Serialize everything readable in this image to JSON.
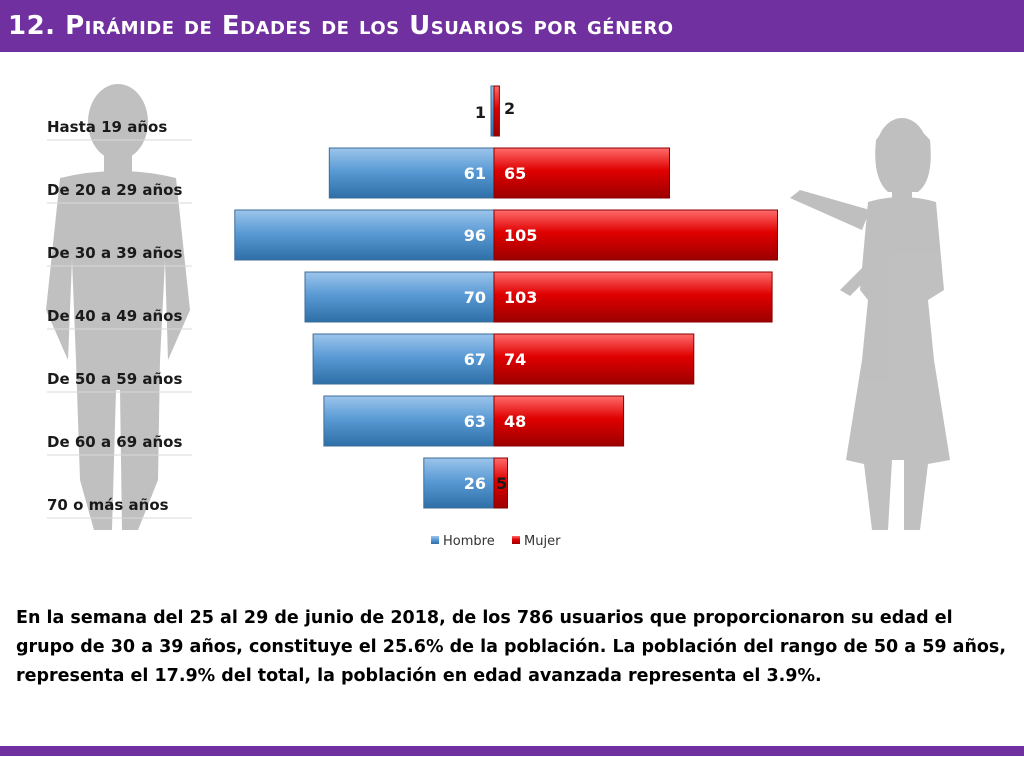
{
  "title": "12. Pirámide de Edades de los Usuarios por género",
  "summary": "En la semana del 25 al 29 de junio de 2018, de los 786 usuarios  que proporcionaron su edad el grupo de 30 a 39 años, constituye el 25.6% de la población. La población del rango de 50 a 59 años, representa el 17.9% del total, la población en edad avanzada representa el 3.9%.",
  "colors": {
    "accent": "#7030a0",
    "hombre": "#5b9bd5",
    "mujer": "#e00000",
    "silhouette": "#b5b5b5"
  },
  "chart_data": {
    "type": "bar",
    "orientation": "horizontal",
    "categories": [
      "Hasta 19 años",
      "De 20 a 29 años",
      "De 30 a 39 años",
      "De 40 a 49 años",
      "De 50 a 59 años",
      "De 60 a 69 años",
      "70 o más años"
    ],
    "series": [
      {
        "name": "Hombre",
        "values": [
          1,
          61,
          96,
          70,
          67,
          63,
          26
        ]
      },
      {
        "name": "Mujer",
        "values": [
          2,
          65,
          105,
          103,
          74,
          48,
          5
        ]
      }
    ],
    "xlim": [
      -110,
      110
    ],
    "legend": "bottom",
    "grid": false
  }
}
